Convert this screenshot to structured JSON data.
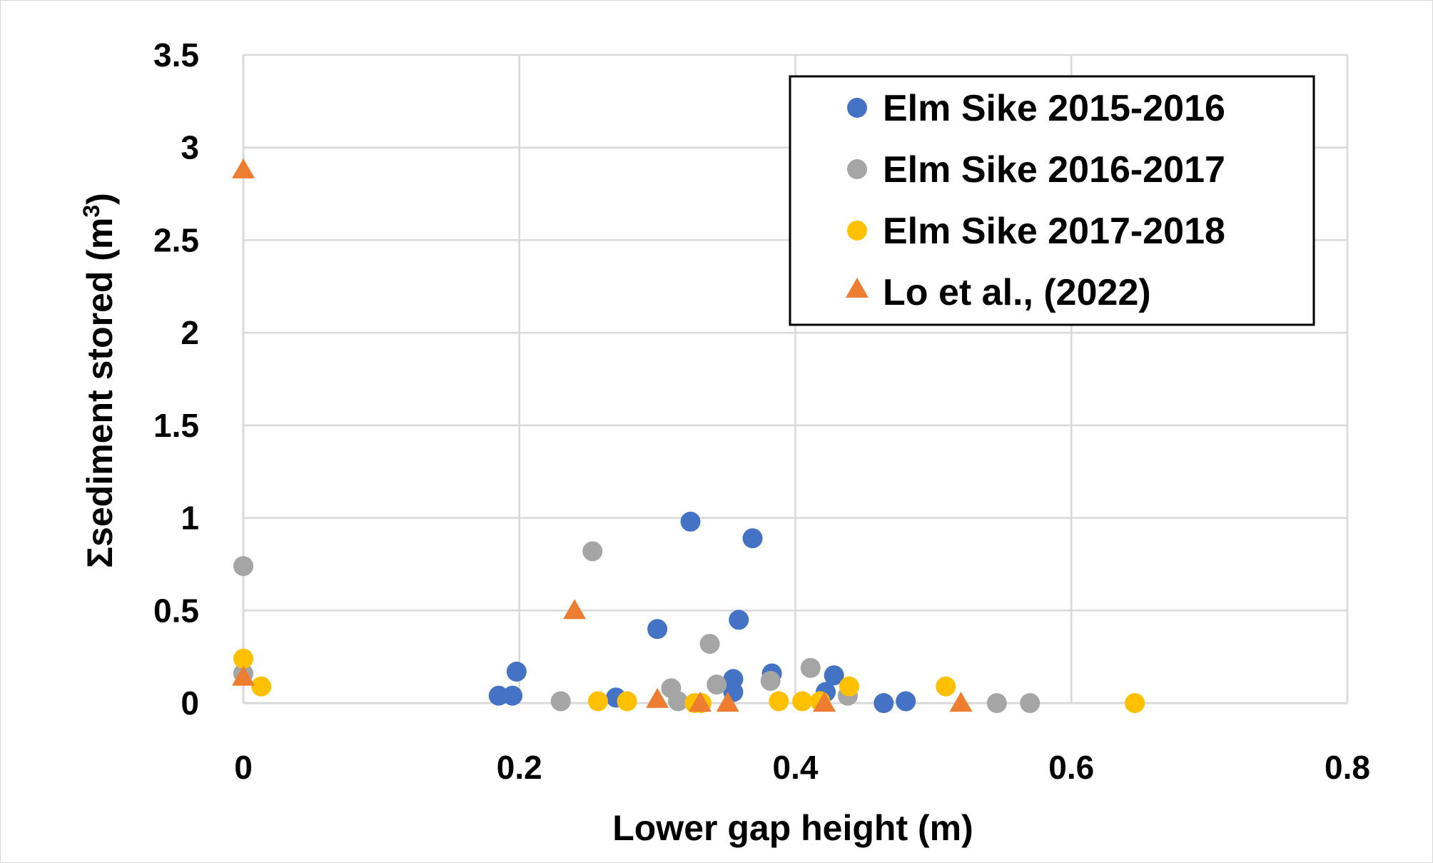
{
  "chart_data": {
    "type": "scatter",
    "title": "",
    "xlabel": "Lower gap height (m)",
    "ylabel": "Σsediment stored (m",
    "ylabel_superscript": "3",
    "ylabel_suffix": ")",
    "xlim": [
      0,
      0.8
    ],
    "ylim": [
      0,
      3.5
    ],
    "x_ticks": [
      0,
      0.2,
      0.4,
      0.6,
      0.8
    ],
    "x_tick_labels": [
      "0",
      "0.2",
      "0.4",
      "0.6",
      "0.8"
    ],
    "y_ticks": [
      0,
      0.5,
      1,
      1.5,
      2,
      2.5,
      3,
      3.5
    ],
    "y_tick_labels": [
      "0",
      "0.5",
      "1",
      "1.5",
      "2",
      "2.5",
      "3",
      "3.5"
    ],
    "grid": true,
    "legend_position": "top-right",
    "series": [
      {
        "name": "Elm Sike 2015-2016",
        "marker": "circle",
        "color": "#4472c4",
        "points": [
          [
            0.185,
            0.04
          ],
          [
            0.195,
            0.04
          ],
          [
            0.198,
            0.17
          ],
          [
            0.27,
            0.03
          ],
          [
            0.3,
            0.4
          ],
          [
            0.324,
            0.98
          ],
          [
            0.355,
            0.13
          ],
          [
            0.355,
            0.06
          ],
          [
            0.359,
            0.45
          ],
          [
            0.369,
            0.89
          ],
          [
            0.383,
            0.16
          ],
          [
            0.422,
            0.06
          ],
          [
            0.428,
            0.15
          ],
          [
            0.464,
            0.0
          ],
          [
            0.48,
            0.01
          ]
        ]
      },
      {
        "name": "Elm Sike 2016-2017",
        "marker": "circle",
        "color": "#a5a5a5",
        "points": [
          [
            0.0,
            0.74
          ],
          [
            0.0,
            0.16
          ],
          [
            0.23,
            0.01
          ],
          [
            0.253,
            0.82
          ],
          [
            0.31,
            0.08
          ],
          [
            0.315,
            0.01
          ],
          [
            0.338,
            0.32
          ],
          [
            0.343,
            0.1
          ],
          [
            0.382,
            0.12
          ],
          [
            0.411,
            0.19
          ],
          [
            0.438,
            0.04
          ],
          [
            0.546,
            0.0
          ],
          [
            0.57,
            0.0
          ]
        ]
      },
      {
        "name": "Elm Sike 2017-2018",
        "marker": "circle",
        "color": "#ffc000",
        "points": [
          [
            0.0,
            0.24
          ],
          [
            0.013,
            0.09
          ],
          [
            0.257,
            0.01
          ],
          [
            0.278,
            0.01
          ],
          [
            0.327,
            0.0
          ],
          [
            0.332,
            0.0
          ],
          [
            0.388,
            0.01
          ],
          [
            0.405,
            0.01
          ],
          [
            0.418,
            0.01
          ],
          [
            0.439,
            0.09
          ],
          [
            0.509,
            0.09
          ],
          [
            0.646,
            0.0
          ]
        ]
      },
      {
        "name": "Lo et al., (2022)",
        "marker": "triangle",
        "color": "#ed7d31",
        "points": [
          [
            0.0,
            2.88
          ],
          [
            0.0,
            0.14
          ],
          [
            0.24,
            0.5
          ],
          [
            0.3,
            0.02
          ],
          [
            0.331,
            0.0
          ],
          [
            0.351,
            0.0
          ],
          [
            0.421,
            0.0
          ],
          [
            0.52,
            0.0
          ]
        ]
      }
    ]
  }
}
